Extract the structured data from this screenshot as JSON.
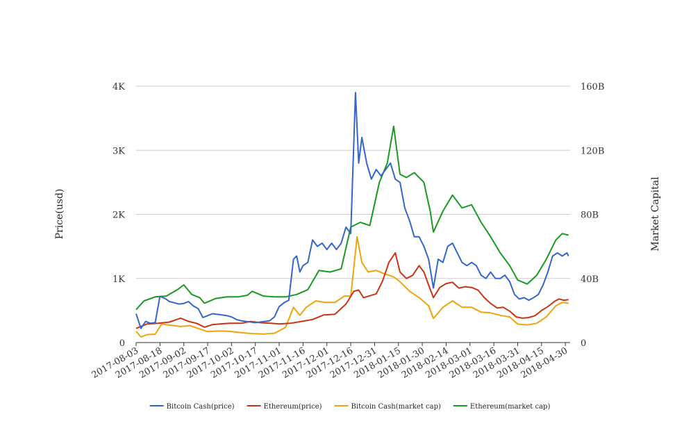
{
  "chart_data": {
    "type": "line",
    "title": "",
    "ylabel_left": "Price(usd)",
    "ylabel_right": "Market Capital",
    "ylim_left": [
      0,
      4000
    ],
    "ylim_right": [
      0,
      160000000000
    ],
    "yticks_left": [
      {
        "value": 0,
        "label": "0"
      },
      {
        "value": 1000,
        "label": "1K"
      },
      {
        "value": 2000,
        "label": "2K"
      },
      {
        "value": 3000,
        "label": "3K"
      },
      {
        "value": 4000,
        "label": "4K"
      }
    ],
    "yticks_right": [
      {
        "value": 0,
        "label": "0"
      },
      {
        "value": 40000000000,
        "label": "40B"
      },
      {
        "value": 80000000000,
        "label": "80B"
      },
      {
        "value": 120000000000,
        "label": "120B"
      },
      {
        "value": 160000000000,
        "label": "160B"
      }
    ],
    "x_range": [
      "2017-08-03",
      "2018-05-03"
    ],
    "xticks": [
      "2017-08-03",
      "2017-08-18",
      "2017-09-02",
      "2017-09-17",
      "2017-10-02",
      "2017-10-17",
      "2017-11-01",
      "2017-11-16",
      "2017-12-01",
      "2017-12-16",
      "2017-12-31",
      "2018-01-15",
      "2018-01-30",
      "2018-02-14",
      "2018-03-01",
      "2018-03-16",
      "2018-03-31",
      "2018-04-15",
      "2018-04-30"
    ],
    "grid": true,
    "legend": "bottom",
    "series": [
      {
        "name": "Bitcoin Cash(price)",
        "axis": "left",
        "color": "#3366cc",
        "points": [
          [
            "2017-08-03",
            450
          ],
          [
            "2017-08-06",
            220
          ],
          [
            "2017-08-09",
            330
          ],
          [
            "2017-08-12",
            300
          ],
          [
            "2017-08-15",
            310
          ],
          [
            "2017-08-18",
            720
          ],
          [
            "2017-08-21",
            690
          ],
          [
            "2017-08-24",
            640
          ],
          [
            "2017-08-27",
            620
          ],
          [
            "2017-08-30",
            600
          ],
          [
            "2017-09-02",
            610
          ],
          [
            "2017-09-05",
            640
          ],
          [
            "2017-09-08",
            570
          ],
          [
            "2017-09-11",
            530
          ],
          [
            "2017-09-14",
            390
          ],
          [
            "2017-09-17",
            420
          ],
          [
            "2017-09-20",
            450
          ],
          [
            "2017-09-23",
            440
          ],
          [
            "2017-09-26",
            430
          ],
          [
            "2017-09-29",
            420
          ],
          [
            "2017-10-02",
            400
          ],
          [
            "2017-10-05",
            360
          ],
          [
            "2017-10-08",
            340
          ],
          [
            "2017-10-11",
            330
          ],
          [
            "2017-10-14",
            320
          ],
          [
            "2017-10-17",
            310
          ],
          [
            "2017-10-20",
            320
          ],
          [
            "2017-10-23",
            330
          ],
          [
            "2017-10-26",
            340
          ],
          [
            "2017-10-29",
            400
          ],
          [
            "2017-11-01",
            560
          ],
          [
            "2017-11-04",
            620
          ],
          [
            "2017-11-07",
            660
          ],
          [
            "2017-11-10",
            1300
          ],
          [
            "2017-11-12",
            1350
          ],
          [
            "2017-11-14",
            1100
          ],
          [
            "2017-11-16",
            1200
          ],
          [
            "2017-11-19",
            1250
          ],
          [
            "2017-11-22",
            1600
          ],
          [
            "2017-11-25",
            1500
          ],
          [
            "2017-11-28",
            1550
          ],
          [
            "2017-12-01",
            1450
          ],
          [
            "2017-12-04",
            1550
          ],
          [
            "2017-12-07",
            1450
          ],
          [
            "2017-12-10",
            1550
          ],
          [
            "2017-12-13",
            1800
          ],
          [
            "2017-12-16",
            1700
          ],
          [
            "2017-12-19",
            3900
          ],
          [
            "2017-12-21",
            2800
          ],
          [
            "2017-12-23",
            3200
          ],
          [
            "2017-12-26",
            2800
          ],
          [
            "2017-12-29",
            2550
          ],
          [
            "2018-01-01",
            2700
          ],
          [
            "2018-01-04",
            2600
          ],
          [
            "2018-01-07",
            2700
          ],
          [
            "2018-01-10",
            2800
          ],
          [
            "2018-01-13",
            2550
          ],
          [
            "2018-01-16",
            2500
          ],
          [
            "2018-01-19",
            2100
          ],
          [
            "2018-01-22",
            1900
          ],
          [
            "2018-01-25",
            1650
          ],
          [
            "2018-01-28",
            1650
          ],
          [
            "2018-01-31",
            1500
          ],
          [
            "2018-02-03",
            1300
          ],
          [
            "2018-02-06",
            850
          ],
          [
            "2018-02-09",
            1300
          ],
          [
            "2018-02-12",
            1250
          ],
          [
            "2018-02-15",
            1500
          ],
          [
            "2018-02-18",
            1550
          ],
          [
            "2018-02-21",
            1400
          ],
          [
            "2018-02-24",
            1250
          ],
          [
            "2018-02-27",
            1200
          ],
          [
            "2018-03-02",
            1250
          ],
          [
            "2018-03-05",
            1200
          ],
          [
            "2018-03-08",
            1050
          ],
          [
            "2018-03-11",
            1000
          ],
          [
            "2018-03-14",
            1100
          ],
          [
            "2018-03-17",
            1000
          ],
          [
            "2018-03-20",
            1000
          ],
          [
            "2018-03-23",
            1050
          ],
          [
            "2018-03-26",
            950
          ],
          [
            "2018-03-29",
            750
          ],
          [
            "2018-04-01",
            680
          ],
          [
            "2018-04-04",
            700
          ],
          [
            "2018-04-07",
            660
          ],
          [
            "2018-04-10",
            700
          ],
          [
            "2018-04-13",
            750
          ],
          [
            "2018-04-16",
            900
          ],
          [
            "2018-04-19",
            1100
          ],
          [
            "2018-04-22",
            1350
          ],
          [
            "2018-04-25",
            1400
          ],
          [
            "2018-04-28",
            1350
          ],
          [
            "2018-05-01",
            1400
          ],
          [
            "2018-05-02",
            1350
          ]
        ]
      },
      {
        "name": "Ethereum(price)",
        "axis": "left",
        "color": "#cc3311",
        "points": [
          [
            "2017-08-03",
            220
          ],
          [
            "2017-08-10",
            290
          ],
          [
            "2017-08-17",
            300
          ],
          [
            "2017-08-24",
            320
          ],
          [
            "2017-08-31",
            380
          ],
          [
            "2017-09-05",
            330
          ],
          [
            "2017-09-10",
            300
          ],
          [
            "2017-09-15",
            240
          ],
          [
            "2017-09-20",
            280
          ],
          [
            "2017-09-25",
            290
          ],
          [
            "2017-10-01",
            300
          ],
          [
            "2017-10-08",
            300
          ],
          [
            "2017-10-14",
            330
          ],
          [
            "2017-10-20",
            310
          ],
          [
            "2017-10-27",
            300
          ],
          [
            "2017-11-01",
            290
          ],
          [
            "2017-11-08",
            300
          ],
          [
            "2017-11-15",
            330
          ],
          [
            "2017-11-22",
            360
          ],
          [
            "2017-11-29",
            430
          ],
          [
            "2017-12-06",
            440
          ],
          [
            "2017-12-13",
            600
          ],
          [
            "2017-12-18",
            800
          ],
          [
            "2017-12-21",
            820
          ],
          [
            "2017-12-24",
            700
          ],
          [
            "2017-12-28",
            730
          ],
          [
            "2018-01-01",
            760
          ],
          [
            "2018-01-05",
            960
          ],
          [
            "2018-01-09",
            1250
          ],
          [
            "2018-01-13",
            1400
          ],
          [
            "2018-01-16",
            1100
          ],
          [
            "2018-01-20",
            1000
          ],
          [
            "2018-01-24",
            1050
          ],
          [
            "2018-01-28",
            1200
          ],
          [
            "2018-01-31",
            1100
          ],
          [
            "2018-02-04",
            830
          ],
          [
            "2018-02-06",
            700
          ],
          [
            "2018-02-10",
            860
          ],
          [
            "2018-02-14",
            920
          ],
          [
            "2018-02-18",
            940
          ],
          [
            "2018-02-22",
            850
          ],
          [
            "2018-02-26",
            870
          ],
          [
            "2018-03-02",
            860
          ],
          [
            "2018-03-06",
            820
          ],
          [
            "2018-03-10",
            700
          ],
          [
            "2018-03-14",
            610
          ],
          [
            "2018-03-18",
            540
          ],
          [
            "2018-03-22",
            550
          ],
          [
            "2018-03-26",
            490
          ],
          [
            "2018-03-30",
            400
          ],
          [
            "2018-04-03",
            380
          ],
          [
            "2018-04-07",
            390
          ],
          [
            "2018-04-11",
            420
          ],
          [
            "2018-04-15",
            500
          ],
          [
            "2018-04-19",
            560
          ],
          [
            "2018-04-23",
            640
          ],
          [
            "2018-04-26",
            680
          ],
          [
            "2018-04-29",
            660
          ],
          [
            "2018-05-02",
            670
          ]
        ]
      },
      {
        "name": "Bitcoin Cash(market cap)",
        "axis": "right",
        "color": "#f0a30a",
        "points": [
          [
            "2017-08-03",
            7000000000
          ],
          [
            "2017-08-06",
            3500000000
          ],
          [
            "2017-08-10",
            5000000000
          ],
          [
            "2017-08-15",
            5200000000
          ],
          [
            "2017-08-19",
            11500000000
          ],
          [
            "2017-08-25",
            10800000000
          ],
          [
            "2017-08-31",
            10000000000
          ],
          [
            "2017-09-06",
            10500000000
          ],
          [
            "2017-09-12",
            8500000000
          ],
          [
            "2017-09-17",
            6800000000
          ],
          [
            "2017-09-24",
            7200000000
          ],
          [
            "2017-10-01",
            7000000000
          ],
          [
            "2017-10-08",
            6200000000
          ],
          [
            "2017-10-15",
            5600000000
          ],
          [
            "2017-10-22",
            5300000000
          ],
          [
            "2017-10-29",
            5800000000
          ],
          [
            "2017-11-05",
            9500000000
          ],
          [
            "2017-11-10",
            22000000000
          ],
          [
            "2017-11-14",
            17000000000
          ],
          [
            "2017-11-18",
            22000000000
          ],
          [
            "2017-11-24",
            26000000000
          ],
          [
            "2017-11-30",
            25000000000
          ],
          [
            "2017-12-06",
            25000000000
          ],
          [
            "2017-12-12",
            29000000000
          ],
          [
            "2017-12-16",
            29000000000
          ],
          [
            "2017-12-20",
            66000000000
          ],
          [
            "2017-12-23",
            50000000000
          ],
          [
            "2017-12-27",
            44000000000
          ],
          [
            "2018-01-01",
            45000000000
          ],
          [
            "2018-01-06",
            43000000000
          ],
          [
            "2018-01-12",
            41000000000
          ],
          [
            "2018-01-16",
            38000000000
          ],
          [
            "2018-01-22",
            32000000000
          ],
          [
            "2018-01-28",
            28000000000
          ],
          [
            "2018-02-03",
            23000000000
          ],
          [
            "2018-02-06",
            15000000000
          ],
          [
            "2018-02-12",
            22000000000
          ],
          [
            "2018-02-18",
            26000000000
          ],
          [
            "2018-02-24",
            22000000000
          ],
          [
            "2018-03-02",
            22000000000
          ],
          [
            "2018-03-08",
            19000000000
          ],
          [
            "2018-03-14",
            18500000000
          ],
          [
            "2018-03-20",
            17000000000
          ],
          [
            "2018-03-26",
            16000000000
          ],
          [
            "2018-03-31",
            11500000000
          ],
          [
            "2018-04-06",
            11000000000
          ],
          [
            "2018-04-12",
            12000000000
          ],
          [
            "2018-04-18",
            16000000000
          ],
          [
            "2018-04-24",
            23000000000
          ],
          [
            "2018-04-28",
            25000000000
          ],
          [
            "2018-05-02",
            24500000000
          ]
        ]
      },
      {
        "name": "Ethereum(market cap)",
        "axis": "right",
        "color": "#1a9920",
        "points": [
          [
            "2017-08-03",
            20500000000
          ],
          [
            "2017-08-08",
            26000000000
          ],
          [
            "2017-08-15",
            28500000000
          ],
          [
            "2017-08-22",
            29000000000
          ],
          [
            "2017-08-29",
            33000000000
          ],
          [
            "2017-09-02",
            36000000000
          ],
          [
            "2017-09-07",
            30000000000
          ],
          [
            "2017-09-12",
            28000000000
          ],
          [
            "2017-09-15",
            24500000000
          ],
          [
            "2017-09-22",
            27500000000
          ],
          [
            "2017-09-29",
            28500000000
          ],
          [
            "2017-10-06",
            28500000000
          ],
          [
            "2017-10-12",
            29500000000
          ],
          [
            "2017-10-15",
            32000000000
          ],
          [
            "2017-10-22",
            29000000000
          ],
          [
            "2017-10-29",
            28500000000
          ],
          [
            "2017-11-05",
            28500000000
          ],
          [
            "2017-11-12",
            30000000000
          ],
          [
            "2017-11-19",
            33000000000
          ],
          [
            "2017-11-26",
            45000000000
          ],
          [
            "2017-12-03",
            44000000000
          ],
          [
            "2017-12-10",
            46000000000
          ],
          [
            "2017-12-16",
            72000000000
          ],
          [
            "2017-12-22",
            75000000000
          ],
          [
            "2017-12-28",
            73000000000
          ],
          [
            "2018-01-03",
            100000000000
          ],
          [
            "2018-01-08",
            112000000000
          ],
          [
            "2018-01-12",
            135000000000
          ],
          [
            "2018-01-16",
            105000000000
          ],
          [
            "2018-01-20",
            103000000000
          ],
          [
            "2018-01-25",
            106000000000
          ],
          [
            "2018-01-31",
            100000000000
          ],
          [
            "2018-02-04",
            82000000000
          ],
          [
            "2018-02-06",
            69000000000
          ],
          [
            "2018-02-12",
            82000000000
          ],
          [
            "2018-02-18",
            92000000000
          ],
          [
            "2018-02-24",
            84000000000
          ],
          [
            "2018-03-02",
            86000000000
          ],
          [
            "2018-03-08",
            75000000000
          ],
          [
            "2018-03-14",
            66000000000
          ],
          [
            "2018-03-20",
            56000000000
          ],
          [
            "2018-03-26",
            48000000000
          ],
          [
            "2018-03-31",
            39000000000
          ],
          [
            "2018-04-06",
            36500000000
          ],
          [
            "2018-04-12",
            42000000000
          ],
          [
            "2018-04-18",
            52000000000
          ],
          [
            "2018-04-24",
            64000000000
          ],
          [
            "2018-04-28",
            68000000000
          ],
          [
            "2018-05-02",
            67000000000
          ]
        ]
      }
    ]
  }
}
